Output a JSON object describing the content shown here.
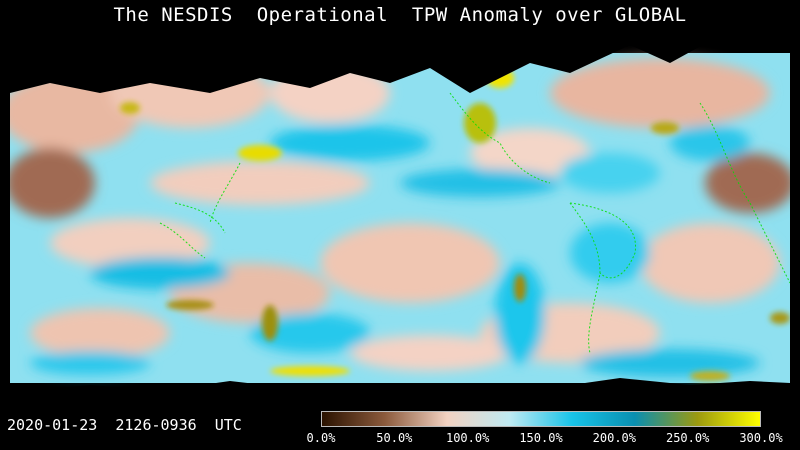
{
  "title": "The NESDIS  Operational  TPW Anomaly over GLOBAL",
  "timestamp": "2020-01-23  2126-0936  UTC",
  "colorbar": {
    "ticks": [
      "0.0%",
      "50.0%",
      "100.0%",
      "150.0%",
      "200.0%",
      "250.0%",
      "300.0%"
    ],
    "stops": [
      "#2a1200",
      "#8b5a3c",
      "#f2d2c2",
      "#bfeaf2",
      "#18c3e8",
      "#0a8fb0",
      "#9c9a10",
      "#ffff00"
    ]
  },
  "colors": {
    "below_normal": "#e8b8a2",
    "normal": "#f4f4f6",
    "above_normal": "#4fd6ee",
    "strong_above": "#12b8df",
    "extreme": "#f4e600",
    "very_dry": "#a06040",
    "coastline": "#00e000",
    "no_data": "#000000"
  }
}
